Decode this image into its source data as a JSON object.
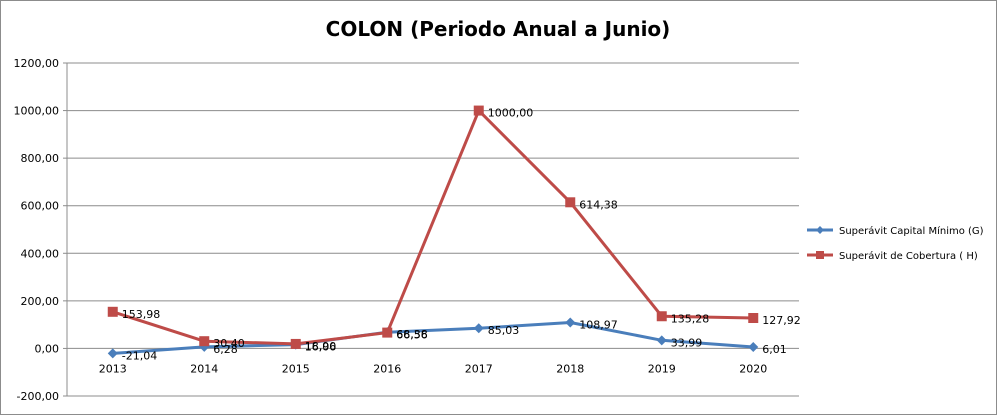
{
  "chart_data": {
    "type": "line",
    "title": "COLON (Periodo Anual a Junio)",
    "categories": [
      "2013",
      "2014",
      "2015",
      "2016",
      "2017",
      "2018",
      "2019",
      "2020"
    ],
    "ylim": [
      -200,
      1200
    ],
    "yticks": [
      -200,
      0,
      200,
      400,
      600,
      800,
      1000,
      1200
    ],
    "ytick_labels": [
      "-200,00",
      "0,00",
      "200,00",
      "400,00",
      "600,00",
      "800,00",
      "1000,00",
      "1200,00"
    ],
    "grid": true,
    "legend_position": "right",
    "series": [
      {
        "name": "Superávit Capital Mínimo  (G)",
        "color": "#4a7ebb",
        "marker": "diamond",
        "values": [
          -21.04,
          6.28,
          16.06,
          68.38,
          85.03,
          108.97,
          33.99,
          6.01
        ],
        "labels": [
          "-21,04",
          "6,28",
          "16,06",
          "68,38",
          "85,03",
          "108,97",
          "33,99",
          "6,01"
        ]
      },
      {
        "name": "Superávit de Cobertura ( H)",
        "color": "#be4b48",
        "marker": "square",
        "values": [
          153.98,
          30.4,
          18.9,
          66.56,
          1000.0,
          614.38,
          135.28,
          127.92
        ],
        "labels": [
          "153,98",
          "30,40",
          "18,90",
          "66,56",
          "1000,00",
          "614,38",
          "135,28",
          "127,92"
        ]
      }
    ]
  }
}
